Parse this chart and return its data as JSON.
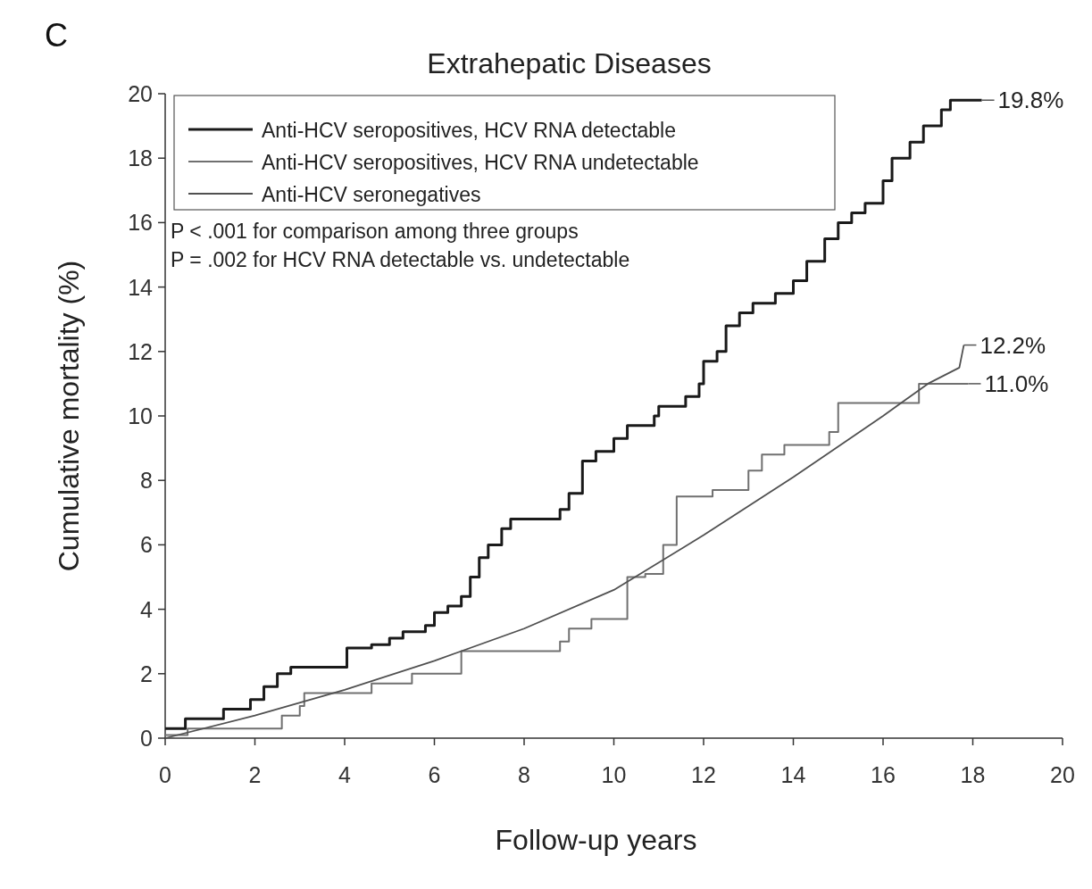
{
  "chart_data": {
    "type": "step",
    "title": "Extrahepatic Diseases",
    "xlabel": "Follow-up years",
    "ylabel": "Cumulative mortality (%)",
    "xlim": [
      0,
      20
    ],
    "xticks": [
      0,
      2,
      4,
      6,
      8,
      10,
      12,
      14,
      16,
      18,
      20
    ],
    "ylim": [
      0,
      20
    ],
    "yticks": [
      0,
      2,
      4,
      6,
      8,
      10,
      12,
      14,
      16,
      18,
      20
    ],
    "grid": false,
    "legend": "top left",
    "marker": "none",
    "line_style": "solid",
    "series": [
      {
        "name": "Anti-HCV seropositives, HCV RNA detectable",
        "color": "#1a1a1a",
        "x": [
          0,
          0.45,
          1.3,
          1.9,
          2.2,
          2.5,
          2.8,
          4.05,
          4.6,
          5.0,
          5.3,
          5.8,
          6.0,
          6.3,
          6.6,
          6.8,
          7.0,
          7.2,
          7.5,
          7.7,
          8.8,
          9.0,
          9.3,
          9.6,
          10.0,
          10.3,
          10.9,
          11.0,
          11.6,
          11.9,
          12.0,
          12.3,
          12.5,
          12.8,
          13.1,
          13.6,
          14.0,
          14.3,
          14.7,
          15.0,
          15.3,
          15.6,
          16.0,
          16.2,
          16.6,
          16.9,
          17.3,
          17.5,
          18.2
        ],
        "values": [
          0.3,
          0.6,
          0.9,
          1.2,
          1.6,
          2.0,
          2.2,
          2.8,
          2.9,
          3.1,
          3.3,
          3.5,
          3.9,
          4.1,
          4.4,
          5.0,
          5.6,
          6.0,
          6.5,
          6.8,
          7.1,
          7.6,
          8.6,
          8.9,
          9.3,
          9.7,
          10.0,
          10.3,
          10.6,
          11.0,
          11.7,
          12.0,
          12.8,
          13.2,
          13.5,
          13.8,
          14.2,
          14.8,
          15.5,
          16.0,
          16.3,
          16.6,
          17.3,
          18.0,
          18.5,
          19.0,
          19.5,
          19.8,
          19.8
        ]
      },
      {
        "name": "Anti-HCV seropositives, HCV RNA undetectable",
        "color": "#707070",
        "x": [
          0,
          0.5,
          2.6,
          3.0,
          3.1,
          4.6,
          5.5,
          6.6,
          8.8,
          9.0,
          9.5,
          10.3,
          10.7,
          11.1,
          11.4,
          12.2,
          13.0,
          13.3,
          13.8,
          14.8,
          15.0,
          16.8,
          17.9
        ],
        "values": [
          0.1,
          0.3,
          0.7,
          1.0,
          1.4,
          1.7,
          2.0,
          2.7,
          3.0,
          3.4,
          3.7,
          5.0,
          5.1,
          6.0,
          7.5,
          7.7,
          8.3,
          8.8,
          9.1,
          9.5,
          10.4,
          11.0,
          11.0
        ]
      },
      {
        "name": "Anti-HCV seronegatives",
        "color": "#505050",
        "type": "line",
        "x": [
          0,
          2,
          4,
          6,
          8,
          10,
          12,
          14,
          16,
          17,
          17.7,
          17.8
        ],
        "values": [
          0,
          0.7,
          1.5,
          2.4,
          3.4,
          4.6,
          6.3,
          8.1,
          10.0,
          11.0,
          11.5,
          12.2
        ]
      }
    ],
    "annotations": [
      "C",
      "P < .001 for comparison among three groups",
      "P = .002 for HCV RNA detectable vs. undetectable",
      {
        "text": "19.8%",
        "x": 18.2,
        "y": 19.8
      },
      {
        "text": "12.2%",
        "x": 17.8,
        "y": 12.2
      },
      {
        "text": "11.0%",
        "x": 17.9,
        "y": 11.0
      }
    ]
  }
}
